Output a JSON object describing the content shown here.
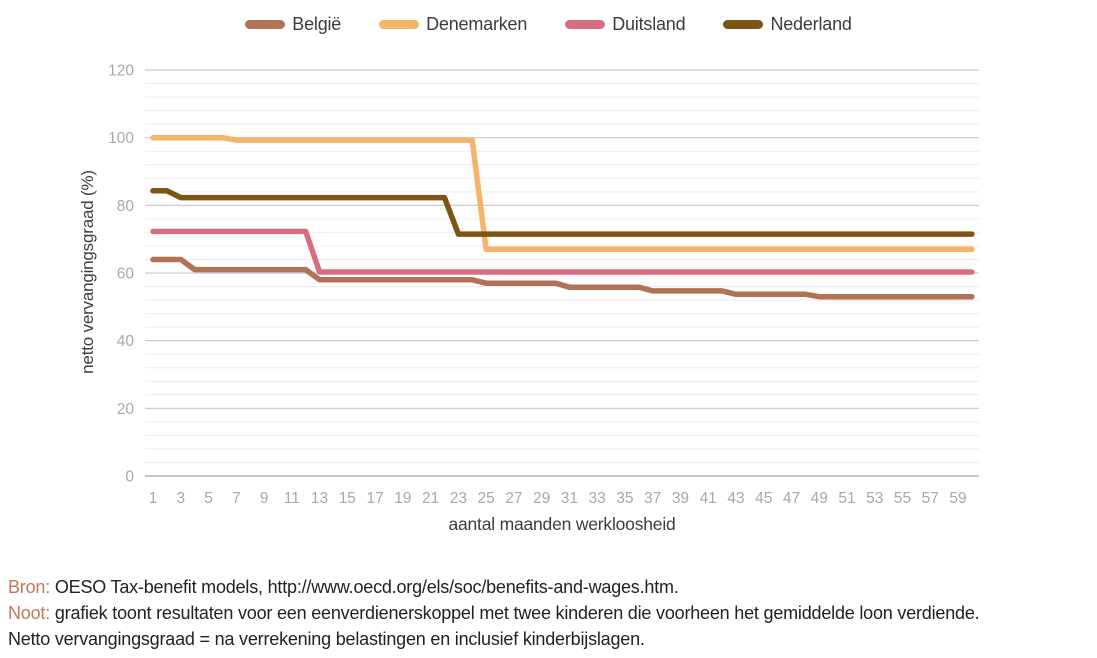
{
  "accent_color": "#c1795a",
  "chart_data": {
    "type": "line",
    "title": "",
    "xlabel": "aantal maanden werkloosheid",
    "ylabel": "netto vervangingsgraad (%)",
    "x_range": [
      1,
      60
    ],
    "ylim": [
      0,
      120
    ],
    "yticks": [
      0,
      20,
      40,
      60,
      80,
      100,
      120
    ],
    "xticks": [
      1,
      3,
      5,
      7,
      9,
      11,
      13,
      15,
      17,
      19,
      21,
      23,
      25,
      27,
      29,
      31,
      33,
      35,
      37,
      39,
      41,
      43,
      45,
      47,
      49,
      51,
      53,
      55,
      57,
      59
    ],
    "grid": {
      "major_every": 20,
      "minor_every": 4,
      "major_color": "#c7c7c7",
      "minor_color": "#ececec",
      "zero_line_color": "#b3b3b3"
    },
    "legend_position": "top",
    "axis_tick_color": "#a8a8a8",
    "axis_title_color": "#3d3d3d",
    "series": [
      {
        "name": "België",
        "color": "#b17355",
        "points": [
          [
            1,
            64
          ],
          [
            3,
            64
          ],
          [
            4,
            61
          ],
          [
            12,
            61
          ],
          [
            13,
            58
          ],
          [
            24,
            58
          ],
          [
            25,
            57
          ],
          [
            30,
            57
          ],
          [
            31,
            55.8
          ],
          [
            36,
            55.8
          ],
          [
            37,
            54.7
          ],
          [
            42,
            54.7
          ],
          [
            43,
            53.7
          ],
          [
            48,
            53.7
          ],
          [
            49,
            53
          ],
          [
            60,
            53
          ]
        ]
      },
      {
        "name": "Denemarken",
        "color": "#f6b469",
        "points": [
          [
            1,
            100
          ],
          [
            6,
            100
          ],
          [
            7,
            99.3
          ],
          [
            24,
            99.3
          ],
          [
            25,
            67
          ],
          [
            60,
            67
          ]
        ]
      },
      {
        "name": "Duitsland",
        "color": "#d76d81",
        "points": [
          [
            1,
            72.3
          ],
          [
            12,
            72.3
          ],
          [
            13,
            60.3
          ],
          [
            60,
            60.3
          ]
        ]
      },
      {
        "name": "Nederland",
        "color": "#7c5416",
        "points": [
          [
            1,
            84.3
          ],
          [
            2,
            84.3
          ],
          [
            3,
            82.3
          ],
          [
            22,
            82.3
          ],
          [
            23,
            71.5
          ],
          [
            60,
            71.5
          ]
        ]
      }
    ]
  },
  "notes": [
    {
      "prefix": "Bron:",
      "text": "OESO Tax-benefit models, http://www.oecd.org/els/soc/benefits-and-wages.htm."
    },
    {
      "prefix": "Noot:",
      "text": "grafiek toont resultaten voor een eenverdienerskoppel met twee kinderen die voorheen het gemiddelde loon verdiende. Netto vervangingsgraad = na verrekening belastingen en inclusief kinderbijslagen."
    }
  ]
}
